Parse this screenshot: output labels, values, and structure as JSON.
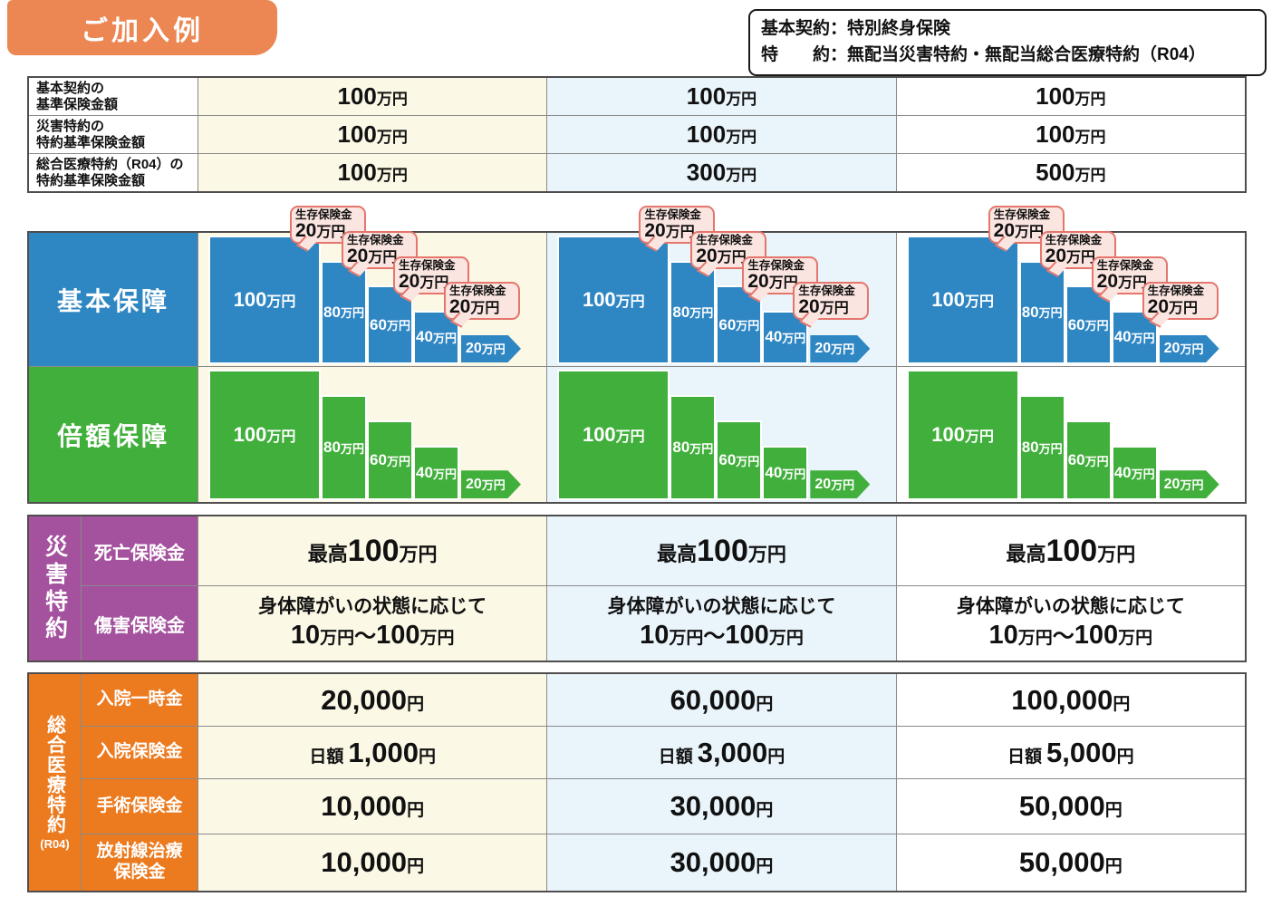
{
  "badge": {
    "label": "ご加入例"
  },
  "contract_box": {
    "line1": "基本契約：特別終身保険",
    "line2": "特　　約：無配当災害特約・無配当総合医療特約（R04）"
  },
  "base_table": {
    "rows": [
      {
        "label1": "基本契約の",
        "label2": "基準保険金額",
        "values": [
          {
            "num": "100",
            "unit": "万円"
          },
          {
            "num": "100",
            "unit": "万円"
          },
          {
            "num": "100",
            "unit": "万円"
          }
        ]
      },
      {
        "label1": "災害特約の",
        "label2": "特約基準保険金額",
        "values": [
          {
            "num": "100",
            "unit": "万円"
          },
          {
            "num": "100",
            "unit": "万円"
          },
          {
            "num": "100",
            "unit": "万円"
          }
        ]
      },
      {
        "label1": "総合医療特約（R04）の",
        "label2": "特約基準保険金額",
        "values": [
          {
            "num": "100",
            "unit": "万円"
          },
          {
            "num": "300",
            "unit": "万円"
          },
          {
            "num": "500",
            "unit": "万円"
          }
        ]
      }
    ]
  },
  "chart": {
    "basic_label": "基本保障",
    "double_label": "倍額保障",
    "bars": [
      {
        "num": "100",
        "unit": "万円"
      },
      {
        "num": "80",
        "unit": "万円"
      },
      {
        "num": "60",
        "unit": "万円"
      },
      {
        "num": "40",
        "unit": "万円"
      },
      {
        "num": "20",
        "unit": "万円"
      }
    ],
    "bubble": {
      "title": "生存保険金",
      "num": "20",
      "unit": "万円"
    }
  },
  "chart_data": {
    "type": "bar",
    "series": [
      {
        "name": "基本保障",
        "values": [
          100,
          80,
          60,
          40,
          20
        ]
      },
      {
        "name": "倍額保障",
        "values": [
          100,
          80,
          60,
          40,
          20
        ]
      }
    ],
    "unit": "万円",
    "bar_labels": [
      "100万円",
      "80万円",
      "60万円",
      "40万円",
      "20万円"
    ],
    "annotations": [
      "生存保険金 20万円",
      "生存保険金 20万円",
      "生存保険金 20万円",
      "生存保険金 20万円"
    ],
    "columns_repeated": 3
  },
  "disaster": {
    "vertical_label": "災害特約",
    "death_row": {
      "label": "死亡保険金",
      "prefix": "最高",
      "num": "100",
      "unit": "万円"
    },
    "injury_row": {
      "label": "傷害保険金",
      "line1": "身体障がいの状態に応じて",
      "n1": "10",
      "u1": "万円",
      "sep": "～",
      "n2": "100",
      "u2": "万円"
    }
  },
  "medical": {
    "vertical_label": "総合医療特約",
    "vertical_sub": "(R04)",
    "rows": [
      {
        "label1": "入院一時金",
        "label2": "",
        "values": [
          {
            "prefix": "",
            "num": "20,000",
            "unit": "円"
          },
          {
            "prefix": "",
            "num": "60,000",
            "unit": "円"
          },
          {
            "prefix": "",
            "num": "100,000",
            "unit": "円"
          }
        ]
      },
      {
        "label1": "入院保険金",
        "label2": "",
        "values": [
          {
            "prefix": "日額",
            "num": "1,000",
            "unit": "円"
          },
          {
            "prefix": "日額",
            "num": "3,000",
            "unit": "円"
          },
          {
            "prefix": "日額",
            "num": "5,000",
            "unit": "円"
          }
        ]
      },
      {
        "label1": "手術保険金",
        "label2": "",
        "values": [
          {
            "prefix": "",
            "num": "10,000",
            "unit": "円"
          },
          {
            "prefix": "",
            "num": "30,000",
            "unit": "円"
          },
          {
            "prefix": "",
            "num": "50,000",
            "unit": "円"
          }
        ]
      },
      {
        "label1": "放射線治療",
        "label2": "保険金",
        "values": [
          {
            "prefix": "",
            "num": "10,000",
            "unit": "円"
          },
          {
            "prefix": "",
            "num": "30,000",
            "unit": "円"
          },
          {
            "prefix": "",
            "num": "50,000",
            "unit": "円"
          }
        ]
      }
    ]
  },
  "colors": {
    "badge_orange": "#EC8652",
    "section_orange": "#EC7A1F",
    "blue": "#2E86C3",
    "green": "#41AF3B",
    "purple": "#A4519E",
    "cream": "#FCF8E6",
    "light_blue": "#E9F4FB",
    "bubble_pink": "#FBE5E0",
    "bubble_border": "#E4766D"
  }
}
